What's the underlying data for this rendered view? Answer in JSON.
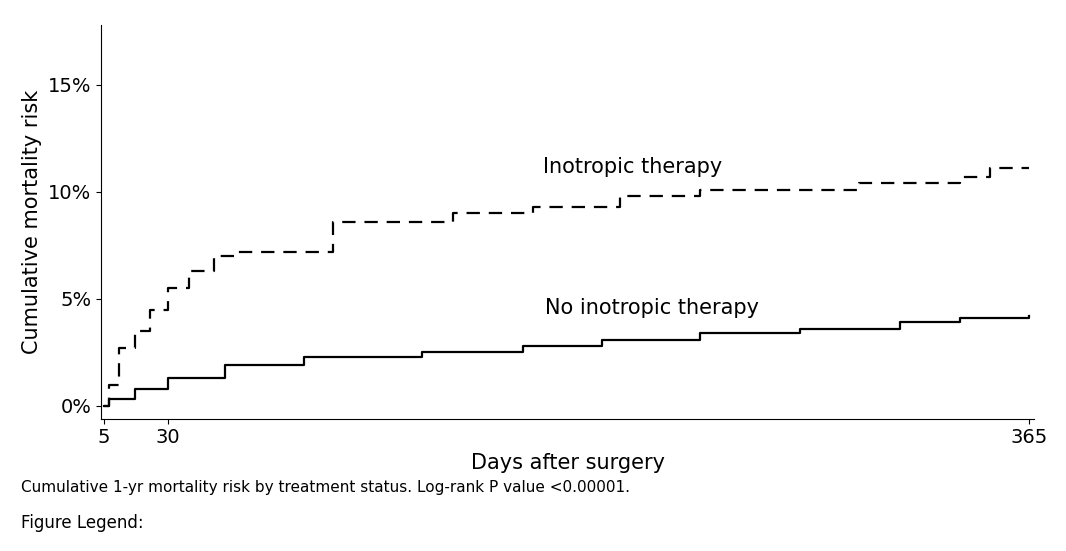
{
  "chart_data": {
    "type": "line",
    "x_label": "Days after surgery",
    "y_label": "Cumulative mortality risk",
    "caption": "Cumulative 1-yr mortality risk by treatment status. Log-rank P value <0.00001.",
    "footer": "Figure Legend:",
    "annotations": [
      "Inotropic therapy",
      "No inotropic therapy"
    ],
    "xlim": [
      4,
      367
    ],
    "ylim": [
      -0.6,
      17.8
    ],
    "xticks": [
      5,
      30,
      365
    ],
    "yticks": [
      {
        "value": 0,
        "label": "0%"
      },
      {
        "value": 5,
        "label": "5%"
      },
      {
        "value": 10,
        "label": "10%"
      },
      {
        "value": 15,
        "label": "15%"
      }
    ],
    "grid": false,
    "series": [
      {
        "name": "Inotropic therapy",
        "color": "#000000",
        "line_style": "dashed",
        "x": [
          5,
          7,
          11,
          17,
          23,
          30,
          38,
          48,
          56,
          94,
          141,
          172,
          206,
          237,
          299,
          338,
          350,
          365
        ],
        "values": [
          0,
          1.0,
          2.7,
          3.5,
          4.5,
          5.5,
          6.3,
          7.0,
          7.2,
          8.6,
          9.0,
          9.3,
          9.8,
          10.1,
          10.4,
          10.7,
          11.1,
          11.1
        ]
      },
      {
        "name": "No inotropic therapy",
        "color": "#000000",
        "line_style": "solid",
        "x": [
          5,
          7,
          17,
          30,
          52,
          83,
          129,
          168,
          199,
          237,
          276,
          315,
          338,
          365
        ],
        "values": [
          0,
          0.3,
          0.8,
          1.3,
          1.9,
          2.3,
          2.5,
          2.8,
          3.1,
          3.4,
          3.6,
          3.9,
          4.1,
          4.2
        ]
      }
    ]
  }
}
